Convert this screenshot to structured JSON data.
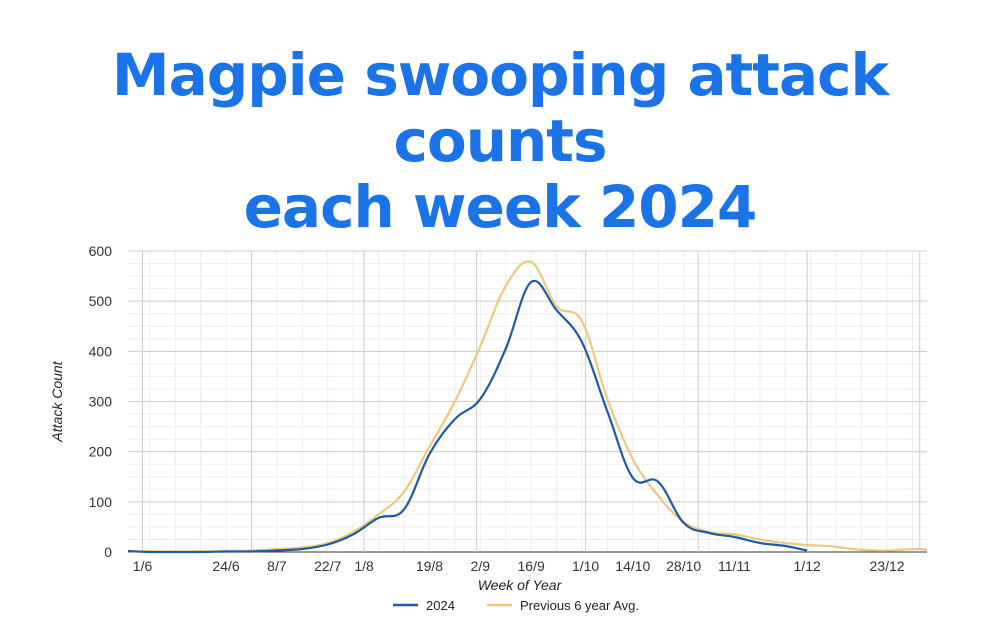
{
  "chart_data": {
    "type": "line",
    "title_lines": [
      "Magpie swooping attack counts",
      "each week 2024"
    ],
    "xlabel": "Week of Year",
    "ylabel": "Attack Count",
    "ylim": [
      0,
      600
    ],
    "yticks": [
      0,
      100,
      200,
      300,
      400,
      500,
      600
    ],
    "xlim": [
      "2024-05-28",
      "2025-01-03"
    ],
    "xticks": [
      {
        "label": "1/6",
        "date": "2024-06-01"
      },
      {
        "label": "24/6",
        "date": "2024-06-24"
      },
      {
        "label": "8/7",
        "date": "2024-07-08"
      },
      {
        "label": "22/7",
        "date": "2024-07-22"
      },
      {
        "label": "1/8",
        "date": "2024-08-01"
      },
      {
        "label": "19/8",
        "date": "2024-08-19"
      },
      {
        "label": "2/9",
        "date": "2024-09-02"
      },
      {
        "label": "16/9",
        "date": "2024-09-16"
      },
      {
        "label": "1/10",
        "date": "2024-10-01"
      },
      {
        "label": "14/10",
        "date": "2024-10-14"
      },
      {
        "label": "28/10",
        "date": "2024-10-28"
      },
      {
        "label": "11/11",
        "date": "2024-11-11"
      },
      {
        "label": "1/12",
        "date": "2024-12-01"
      },
      {
        "label": "23/12",
        "date": "2024-12-23"
      }
    ],
    "month_dividers": [
      "2024-06-01",
      "2024-07-01",
      "2024-08-01",
      "2024-09-01",
      "2024-10-01",
      "2024-11-01",
      "2024-12-01",
      "2025-01-01"
    ],
    "grid": true,
    "legend_position": "bottom",
    "series": [
      {
        "name": "2024",
        "color": "#1f5aa6",
        "points": [
          {
            "x": "2024-05-28",
            "y": 2
          },
          {
            "x": "2024-06-03",
            "y": 0
          },
          {
            "x": "2024-06-17",
            "y": 0
          },
          {
            "x": "2024-06-24",
            "y": 1
          },
          {
            "x": "2024-07-01",
            "y": 1
          },
          {
            "x": "2024-07-08",
            "y": 3
          },
          {
            "x": "2024-07-15",
            "y": 6
          },
          {
            "x": "2024-07-22",
            "y": 15
          },
          {
            "x": "2024-07-29",
            "y": 35
          },
          {
            "x": "2024-08-05",
            "y": 68
          },
          {
            "x": "2024-08-12",
            "y": 85
          },
          {
            "x": "2024-08-19",
            "y": 195
          },
          {
            "x": "2024-08-26",
            "y": 265
          },
          {
            "x": "2024-09-02",
            "y": 305
          },
          {
            "x": "2024-09-09",
            "y": 405
          },
          {
            "x": "2024-09-16",
            "y": 538
          },
          {
            "x": "2024-09-23",
            "y": 482
          },
          {
            "x": "2024-09-30",
            "y": 418
          },
          {
            "x": "2024-10-07",
            "y": 280
          },
          {
            "x": "2024-10-14",
            "y": 148
          },
          {
            "x": "2024-10-21",
            "y": 140
          },
          {
            "x": "2024-10-28",
            "y": 58
          },
          {
            "x": "2024-11-04",
            "y": 38
          },
          {
            "x": "2024-11-11",
            "y": 30
          },
          {
            "x": "2024-11-18",
            "y": 18
          },
          {
            "x": "2024-11-25",
            "y": 12
          },
          {
            "x": "2024-12-01",
            "y": 3
          }
        ]
      },
      {
        "name": "Previous 6 year Avg.",
        "color": "#ecc97f",
        "points": [
          {
            "x": "2024-05-28",
            "y": 2
          },
          {
            "x": "2024-06-03",
            "y": 1
          },
          {
            "x": "2024-06-17",
            "y": 1
          },
          {
            "x": "2024-06-24",
            "y": 2
          },
          {
            "x": "2024-07-01",
            "y": 3
          },
          {
            "x": "2024-07-08",
            "y": 6
          },
          {
            "x": "2024-07-15",
            "y": 9
          },
          {
            "x": "2024-07-22",
            "y": 18
          },
          {
            "x": "2024-07-29",
            "y": 40
          },
          {
            "x": "2024-08-05",
            "y": 75
          },
          {
            "x": "2024-08-12",
            "y": 120
          },
          {
            "x": "2024-08-19",
            "y": 210
          },
          {
            "x": "2024-08-26",
            "y": 300
          },
          {
            "x": "2024-09-02",
            "y": 410
          },
          {
            "x": "2024-09-09",
            "y": 530
          },
          {
            "x": "2024-09-16",
            "y": 578
          },
          {
            "x": "2024-09-23",
            "y": 490
          },
          {
            "x": "2024-09-30",
            "y": 460
          },
          {
            "x": "2024-10-07",
            "y": 305
          },
          {
            "x": "2024-10-14",
            "y": 185
          },
          {
            "x": "2024-10-21",
            "y": 112
          },
          {
            "x": "2024-10-28",
            "y": 60
          },
          {
            "x": "2024-11-04",
            "y": 40
          },
          {
            "x": "2024-11-11",
            "y": 35
          },
          {
            "x": "2024-11-18",
            "y": 25
          },
          {
            "x": "2024-11-25",
            "y": 18
          },
          {
            "x": "2024-12-01",
            "y": 14
          },
          {
            "x": "2024-12-08",
            "y": 11
          },
          {
            "x": "2024-12-15",
            "y": 5
          },
          {
            "x": "2024-12-23",
            "y": 3
          },
          {
            "x": "2024-12-30",
            "y": 6
          },
          {
            "x": "2025-01-03",
            "y": 5
          }
        ]
      }
    ]
  }
}
